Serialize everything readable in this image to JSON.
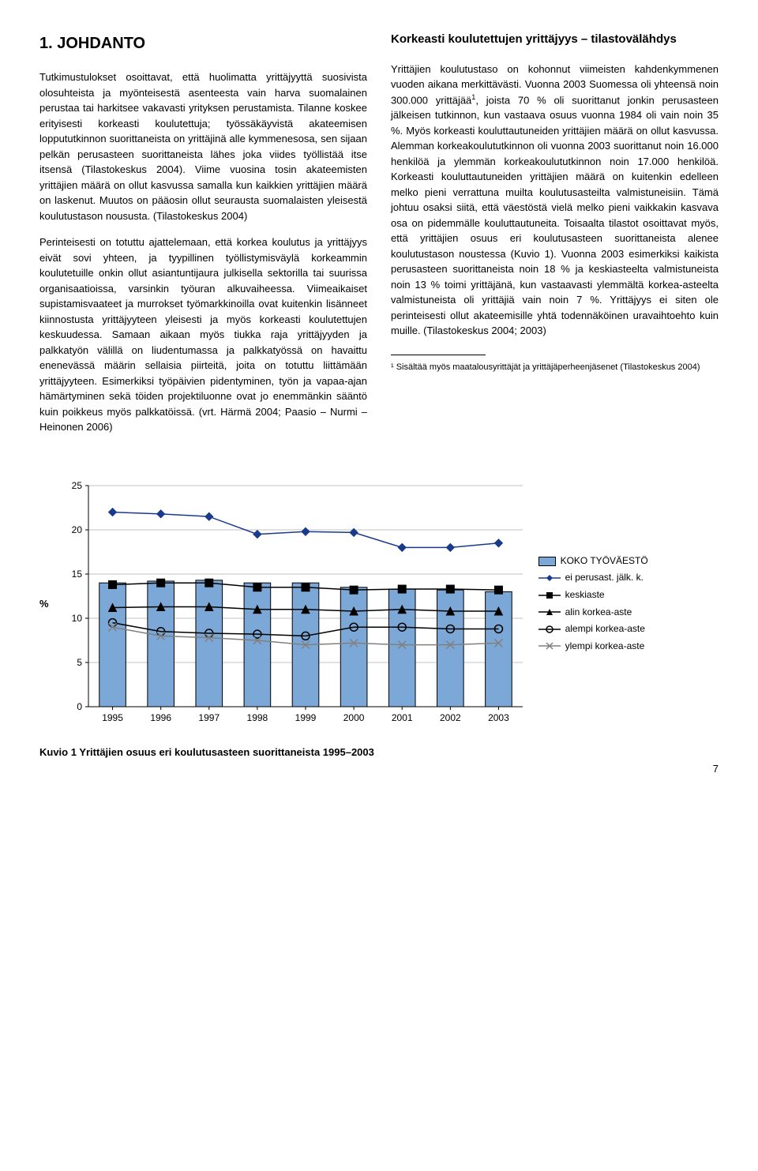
{
  "left": {
    "heading": "1. JOHDANTO",
    "p1": "Tutkimustulokset osoittavat, että huolimatta yrittäjyyttä suosivista olosuhteista ja myönteisestä asenteesta vain harva suomalainen perustaa tai harkitsee vakavasti yrityksen perustamista. Tilanne koskee erityisesti korkeasti koulutettuja; työssäkäyvistä akateemisen loppututkinnon suorittaneista on yrittäjinä alle kymmenesosa, sen sijaan pelkän perusasteen suorittaneista lähes joka viides työllistää itse itsensä (Tilastokeskus 2004). Viime vuosina tosin akateemisten yrittäjien määrä on ollut kasvussa samalla kun kaikkien yrittäjien määrä on laskenut. Muutos on pääosin ollut seurausta suomalaisten yleisestä koulutustason noususta. (Tilastokeskus 2004)",
    "p2": "Perinteisesti on totuttu ajattelemaan, että korkea koulutus ja yrittäjyys eivät sovi yhteen, ja tyypillinen työllistymisväylä korkeammin koulutetuille onkin ollut asiantuntijaura julkisella sektorilla tai suurissa organisaatioissa, varsinkin työuran alkuvaiheessa. Viimeaikaiset supistamisvaateet ja murrokset työmarkkinoilla ovat kuitenkin lisänneet kiinnostusta yrittäjyyteen yleisesti ja myös korkeasti koulutettujen keskuudessa. Samaan aikaan myös tiukka raja yrittäjyyden ja palkkatyön välillä on liudentumassa ja palkkatyössä on havaittu enenevässä määrin sellaisia piirteitä, joita on totuttu liittämään yrittäjyyteen. Esimerkiksi työpäivien pidentyminen, työn ja vapaa-ajan hämärtyminen sekä töiden projektiluonne ovat jo enemmänkin sääntö kuin poikkeus myös palkkatöissä. (vrt. Härmä 2004; Paasio – Nurmi – Heinonen 2006)"
  },
  "right": {
    "heading": "Korkeasti koulutettujen yrittäjyys – tilastovälähdys",
    "p1": "Yrittäjien koulutustaso on kohonnut viimeisten kahdenkymmenen vuoden aikana merkittävästi. Vuonna 2003 Suomessa oli yhteensä noin 300.000 yrittäjää¹, joista 70 % oli suorittanut jonkin perusasteen jälkeisen tutkinnon, kun vastaava osuus vuonna 1984 oli vain noin 35 %. Myös korkeasti kouluttautuneiden yrittäjien määrä on ollut kasvussa. Alemman korkeakoulututkinnon oli vuonna 2003 suorittanut noin 16.000 henkilöä ja ylemmän korkeakoulututkinnon noin 17.000 henkilöä. Korkeasti kouluttautuneiden yrittäjien määrä on kuitenkin edelleen melko pieni verrattuna muilta koulutusasteilta valmistuneisiin. Tämä johtuu osaksi siitä, että väestöstä vielä melko pieni vaikkakin kasvava osa on pidemmälle kouluttautuneita. Toisaalta tilastot osoittavat myös, että yrittäjien osuus eri koulutusasteen suorittaneista alenee koulutustason noustessa (Kuvio 1). Vuonna 2003 esimerkiksi kaikista perusasteen suorittaneista noin 18 % ja keskiasteelta valmistuneista noin 13 % toimi yrittäjänä, kun vastaavasti ylemmältä korkea-asteelta valmistuneista oli yrittäjiä vain noin 7 %. Yrittäjyys ei siten ole perinteisesti ollut akateemisille yhtä todennäköinen uravaihtoehto kuin muille. (Tilastokeskus 2004; 2003)",
    "footnote": "¹ Sisältää myös maatalousyrittäjät ja yrittäjäperheenjäsenet (Tilastokeskus 2004)"
  },
  "chart": {
    "type": "bar+line",
    "y_label": "%",
    "ylim": [
      0,
      25
    ],
    "ytick_step": 5,
    "yticks": [
      0,
      5,
      10,
      15,
      20,
      25
    ],
    "years": [
      1995,
      1996,
      1997,
      1998,
      1999,
      2000,
      2001,
      2002,
      2003
    ],
    "bar_values": [
      14.0,
      14.2,
      14.3,
      14.0,
      14.0,
      13.5,
      13.3,
      13.2,
      13.0
    ],
    "bar_color": "#7ba8d6",
    "bar_border": "#000000",
    "series": {
      "ei_perusast": {
        "values": [
          22.0,
          21.8,
          21.5,
          19.5,
          19.8,
          19.7,
          18.0,
          18.0,
          18.5
        ],
        "color": "#1a3a8c",
        "marker": "diamond"
      },
      "keskiaste": {
        "values": [
          13.8,
          14.0,
          14.0,
          13.5,
          13.5,
          13.2,
          13.3,
          13.3,
          13.2
        ],
        "color": "#000000",
        "marker": "square"
      },
      "alin_ka": {
        "values": [
          11.2,
          11.3,
          11.3,
          11.0,
          11.0,
          10.8,
          11.0,
          10.8,
          10.8
        ],
        "color": "#000000",
        "marker": "triangle"
      },
      "alempi_ka": {
        "values": [
          9.5,
          8.5,
          8.3,
          8.2,
          8.0,
          9.0,
          9.0,
          8.8,
          8.8
        ],
        "color": "#000000",
        "marker": "circle"
      },
      "ylempi_ka": {
        "values": [
          9.0,
          8.0,
          7.8,
          7.5,
          7.0,
          7.2,
          7.0,
          7.0,
          7.2
        ],
        "color": "#808080",
        "marker": "x"
      }
    },
    "legend": {
      "bar": "KOKO TYÖVÄESTÖ",
      "ei_perusast": "ei perusast. jälk. k.",
      "keskiaste": "keskiaste",
      "alin_ka": "alin korkea-aste",
      "alempi_ka": "alempi korkea-aste",
      "ylempi_ka": "ylempi korkea-aste"
    },
    "background_color": "#ffffff",
    "grid_color": "#c0c0c0",
    "axis_fontsize": 12,
    "bar_width": 0.55,
    "line_width": 1.5,
    "marker_size": 5
  },
  "caption": "Kuvio 1 Yrittäjien osuus eri koulutusasteen suorittaneista 1995–2003",
  "page_number": "7"
}
